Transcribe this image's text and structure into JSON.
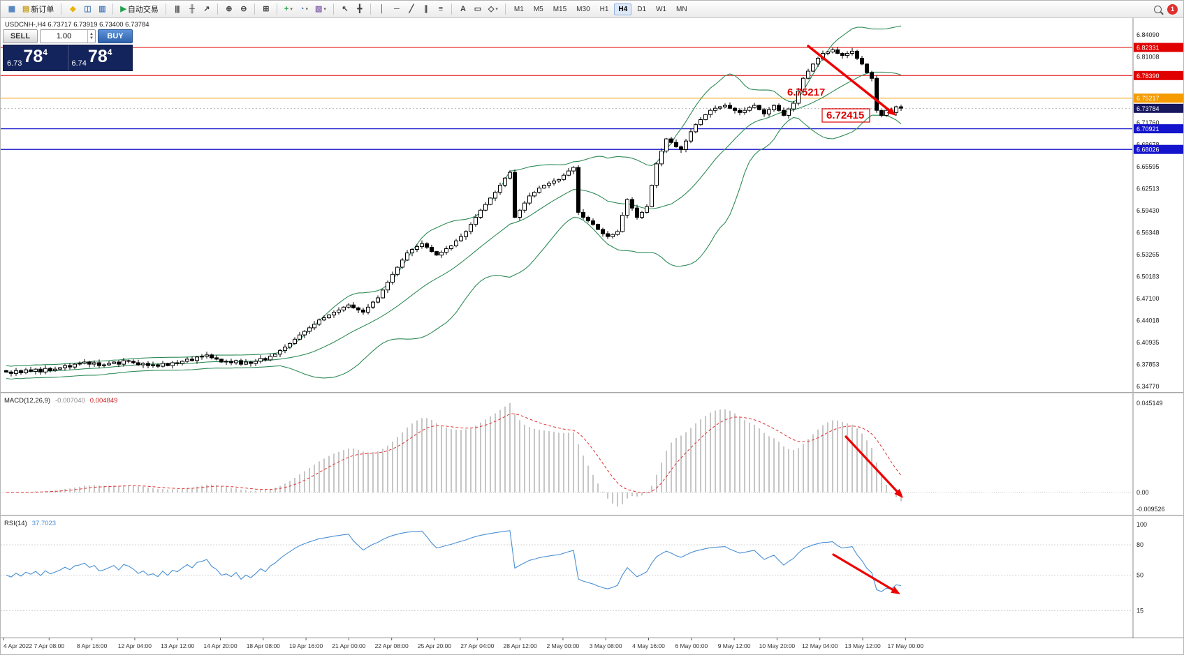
{
  "toolbar": {
    "active_timeframe": "H4",
    "notification_count": "1",
    "timeframes": [
      "M1",
      "M5",
      "M15",
      "M30",
      "H1",
      "H4",
      "D1",
      "W1",
      "MN"
    ],
    "items": [
      {
        "type": "btn",
        "name": "new-chart-button",
        "glyph": "▦",
        "color": "#4a7dbd"
      },
      {
        "type": "btn",
        "name": "new-order-button",
        "glyph": "▤",
        "color": "#c9a227",
        "label": "新订单"
      },
      {
        "type": "sep"
      },
      {
        "type": "btn",
        "name": "indicator-wizard-button",
        "glyph": "◆",
        "color": "#eab308"
      },
      {
        "type": "btn",
        "name": "profiles-button",
        "glyph": "◫",
        "color": "#4a7dbd"
      },
      {
        "type": "btn",
        "name": "data-window-button",
        "glyph": "▥",
        "color": "#4a7dbd"
      },
      {
        "type": "sep"
      },
      {
        "type": "btn",
        "name": "auto-trading-button",
        "glyph": "▶",
        "color": "#21a04b",
        "label": "自动交易"
      },
      {
        "type": "sep"
      },
      {
        "type": "btn",
        "name": "bar-chart-button",
        "glyph": "|||",
        "color": "#444"
      },
      {
        "type": "btn",
        "name": "candlestick-chart-button",
        "glyph": "╫",
        "color": "#444"
      },
      {
        "type": "btn",
        "name": "line-chart-button",
        "glyph": "↗",
        "color": "#444"
      },
      {
        "type": "sep"
      },
      {
        "type": "btn",
        "name": "zoom-in-button",
        "glyph": "⊕",
        "color": "#444"
      },
      {
        "type": "btn",
        "name": "zoom-out-button",
        "glyph": "⊖",
        "color": "#444"
      },
      {
        "type": "sep"
      },
      {
        "type": "btn",
        "name": "tile-windows-button",
        "glyph": "⊞",
        "color": "#444"
      },
      {
        "type": "sep"
      },
      {
        "type": "btn",
        "name": "indicators-button",
        "glyph": "+",
        "color": "#21a04b",
        "caret": true
      },
      {
        "type": "btn",
        "name": "periods-button",
        "glyph": "◔",
        "color": "#4a7dbd",
        "caret": true
      },
      {
        "type": "btn",
        "name": "templates-button",
        "glyph": "▧",
        "color": "#8a6ab0",
        "caret": true
      },
      {
        "type": "sep"
      },
      {
        "type": "btn",
        "name": "cursor-button",
        "glyph": "↖",
        "color": "#444"
      },
      {
        "type": "btn",
        "name": "crosshair-button",
        "glyph": "╋",
        "color": "#444"
      },
      {
        "type": "sep"
      },
      {
        "type": "btn",
        "name": "vertical-line-button",
        "glyph": "│",
        "color": "#444"
      },
      {
        "type": "btn",
        "name": "horizontal-line-button",
        "glyph": "─",
        "color": "#444"
      },
      {
        "type": "btn",
        "name": "trendline-button",
        "glyph": "╱",
        "color": "#444"
      },
      {
        "type": "btn",
        "name": "equidistant-channel-button",
        "glyph": "∥",
        "color": "#444"
      },
      {
        "type": "btn",
        "name": "fibonacci-button",
        "glyph": "≡",
        "color": "#444"
      },
      {
        "type": "sep"
      },
      {
        "type": "btn",
        "name": "text-button",
        "glyph": "A",
        "color": "#444"
      },
      {
        "type": "btn",
        "name": "text-label-button",
        "glyph": "▭",
        "color": "#444"
      },
      {
        "type": "btn",
        "name": "shapes-button",
        "glyph": "◇",
        "color": "#444",
        "caret": true
      },
      {
        "type": "sep"
      }
    ]
  },
  "chart": {
    "ohlc_header": "USDCNH-,H4  6.73717 6.73919 6.73400 6.73784",
    "trade_panel": {
      "sell_label": "SELL",
      "buy_label": "BUY",
      "volume": "1.00",
      "sell_prefix": "6.73",
      "sell_big": "78",
      "sell_sup": "4",
      "buy_prefix": "6.74",
      "buy_big": "78",
      "buy_sup": "4"
    },
    "price_tags": [
      {
        "label": "6.82331",
        "price": 6.82331,
        "bg": "#e00000",
        "line": "#e00000",
        "width": 1
      },
      {
        "label": "6.78390",
        "price": 6.7839,
        "bg": "#e00000",
        "line": "#e00000",
        "width": 1
      },
      {
        "label": "6.75217",
        "price": 6.75217,
        "bg": "#f59b00",
        "line": "#f59b00",
        "width": 1
      },
      {
        "label": "6.73784",
        "price": 6.73784,
        "bg": "#17175e",
        "line": null,
        "width": 0
      },
      {
        "label": "6.70921",
        "price": 6.70921,
        "bg": "#1414cc",
        "line": "#1414cc",
        "width": 1.3
      },
      {
        "label": "6.68026",
        "price": 6.68026,
        "bg": "#1414cc",
        "line": "#1414cc",
        "width": 1.3
      }
    ],
    "grid_labels": [
      {
        "text": "6.84090",
        "price": 6.8409
      },
      {
        "text": "6.81008",
        "price": 6.810075
      },
      {
        "text": "6.71760",
        "price": 6.7176
      },
      {
        "text": "6.68678",
        "price": 6.686775
      },
      {
        "text": "6.65595",
        "price": 6.65595
      },
      {
        "text": "6.62513",
        "price": 6.625125
      },
      {
        "text": "6.59430",
        "price": 6.5943
      },
      {
        "text": "6.56348",
        "price": 6.563475
      },
      {
        "text": "6.53265",
        "price": 6.53265
      },
      {
        "text": "6.50183",
        "price": 6.501825
      },
      {
        "text": "6.47100",
        "price": 6.471
      },
      {
        "text": "6.44018",
        "price": 6.440175
      },
      {
        "text": "6.40935",
        "price": 6.40935
      },
      {
        "text": "6.37853",
        "price": 6.378525
      },
      {
        "text": "6.34770",
        "price": 6.3477
      }
    ],
    "annotations": {
      "level_text": "6.75217",
      "target_text": "6.72415"
    }
  },
  "chart_data": {
    "type": "candlestick",
    "symbol": "USDCNH-",
    "timeframe": "H4",
    "ohlc_current": {
      "open": 6.73717,
      "high": 6.73919,
      "low": 6.734,
      "close": 6.73784
    },
    "price_axis": {
      "min": 6.343,
      "max": 6.8632,
      "label_step": 0.030825
    },
    "first_open": 6.37,
    "closes": [
      6.368,
      6.366,
      6.37,
      6.367,
      6.371,
      6.369,
      6.372,
      6.368,
      6.373,
      6.37,
      6.372,
      6.374,
      6.377,
      6.375,
      6.379,
      6.38,
      6.382,
      6.379,
      6.381,
      6.377,
      6.378,
      6.38,
      6.382,
      6.379,
      6.384,
      6.383,
      6.381,
      6.378,
      6.38,
      6.377,
      6.378,
      6.376,
      6.38,
      6.377,
      6.381,
      6.38,
      6.383,
      6.386,
      6.384,
      6.389,
      6.39,
      6.392,
      6.388,
      6.386,
      6.382,
      6.383,
      6.381,
      6.384,
      6.379,
      6.382,
      6.38,
      6.383,
      6.387,
      6.385,
      6.39,
      6.393,
      6.398,
      6.403,
      6.408,
      6.414,
      6.42,
      6.425,
      6.43,
      6.435,
      6.441,
      6.444,
      6.448,
      6.452,
      6.455,
      6.459,
      6.462,
      6.458,
      6.455,
      6.452,
      6.459,
      6.466,
      6.472,
      6.483,
      6.494,
      6.505,
      6.515,
      6.525,
      6.535,
      6.54,
      6.544,
      6.548,
      6.543,
      6.537,
      6.532,
      6.536,
      6.541,
      6.545,
      6.552,
      6.558,
      6.565,
      6.575,
      6.585,
      6.595,
      6.603,
      6.612,
      6.62,
      6.63,
      6.64,
      6.648,
      6.585,
      6.595,
      6.605,
      6.615,
      6.62,
      6.626,
      6.63,
      6.633,
      6.636,
      6.638,
      6.644,
      6.65,
      6.655,
      6.592,
      6.585,
      6.58,
      6.575,
      6.568,
      6.562,
      6.558,
      6.561,
      6.565,
      6.588,
      6.61,
      6.598,
      6.585,
      6.592,
      6.6,
      6.63,
      6.66,
      6.678,
      6.695,
      6.69,
      6.684,
      6.68,
      6.692,
      6.705,
      6.715,
      6.722,
      6.729,
      6.735,
      6.738,
      6.74,
      6.742,
      6.738,
      6.735,
      6.732,
      6.735,
      6.739,
      6.742,
      6.736,
      6.73,
      6.736,
      6.742,
      6.735,
      6.728,
      6.737,
      6.745,
      6.762,
      6.78,
      6.79,
      6.8,
      6.808,
      6.815,
      6.817,
      6.82,
      6.815,
      6.812,
      6.815,
      6.818,
      6.808,
      6.8,
      6.788,
      6.78,
      6.735,
      6.728,
      6.735,
      6.732,
      6.74,
      6.738
    ],
    "bollinger": {
      "period": 20,
      "deviation": 2,
      "color": "#2e8b57"
    },
    "macd": {
      "name_label": "MACD(12,26,9)",
      "value_main_label": "-0.007040",
      "value_signal_label": "0.004849",
      "params": [
        12,
        26,
        9
      ],
      "axis_labels": [
        {
          "text": "0.045149",
          "value": 0.045149
        },
        {
          "text": "0.00",
          "value": 0
        },
        {
          "text": "-0.009526",
          "value": -0.009526
        }
      ]
    },
    "rsi": {
      "name_label": "RSI(14)",
      "value_label": "37.7023",
      "period": 14,
      "levels": [
        {
          "text": "100",
          "value": 100
        },
        {
          "text": "80",
          "value": 80
        },
        {
          "text": "50",
          "value": 50
        },
        {
          "text": "15",
          "value": 15
        }
      ]
    },
    "time_labels": [
      "4 Apr 2022",
      "7 Apr 08:00",
      "8 Apr 16:00",
      "12 Apr 04:00",
      "13 Apr 12:00",
      "14 Apr 20:00",
      "18 Apr 08:00",
      "19 Apr 16:00",
      "21 Apr 00:00",
      "22 Apr 08:00",
      "25 Apr 20:00",
      "27 Apr 04:00",
      "28 Apr 12:00",
      "2 May 00:00",
      "3 May 08:00",
      "4 May 16:00",
      "6 May 00:00",
      "9 May 12:00",
      "10 May 20:00",
      "12 May 04:00",
      "13 May 12:00",
      "17 May 00:00"
    ]
  }
}
